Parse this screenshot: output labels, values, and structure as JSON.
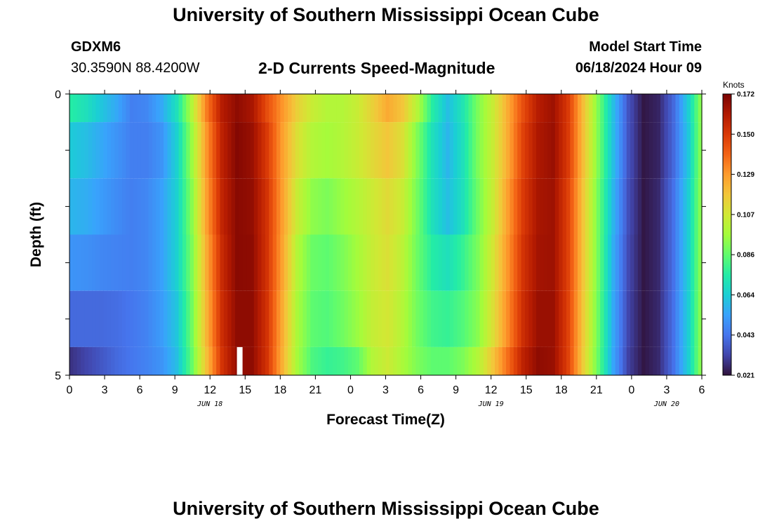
{
  "page": {
    "title": "University of Southern Mississippi Ocean Cube",
    "station_id": "GDXM6",
    "station_coords": "30.3590N  88.4200W",
    "plot_title": "2-D Currents Speed-Magnitude",
    "model_start_label": "Model Start Time",
    "model_start_value": "06/18/2024 Hour 09",
    "footer_title": "University of Southern Mississippi Ocean Cube"
  },
  "chart_data": {
    "type": "heatmap",
    "title": "2-D Currents Speed-Magnitude",
    "xlabel": "Forecast Time(Z)",
    "ylabel": "Depth (ft)",
    "x_tick_labels": [
      "0",
      "3",
      "6",
      "9",
      "12",
      "15",
      "18",
      "21",
      "0",
      "3",
      "6",
      "9",
      "12",
      "15",
      "18",
      "21",
      "0",
      "3",
      "6"
    ],
    "date_labels": [
      {
        "label": "JUN 18",
        "at_tick_index": 4
      },
      {
        "label": "JUN 19",
        "at_tick_index": 12
      },
      {
        "label": "JUN 20",
        "at_tick_index": 17
      }
    ],
    "y_tick_labels": [
      "0",
      "5"
    ],
    "ylim": [
      0,
      5
    ],
    "x_range_hours": [
      0,
      54
    ],
    "colorbar": {
      "unit": "Knots",
      "min": 0.021,
      "max": 0.172,
      "tick_labels": [
        "0.172",
        "0.150",
        "0.129",
        "0.107",
        "0.086",
        "0.064",
        "0.043",
        "0.021"
      ],
      "colors": [
        "#30123b",
        "#4145ab",
        "#4675ed",
        "#39a2fc",
        "#1bcfd4",
        "#24eca6",
        "#61fc6c",
        "#a4fc3b",
        "#d1e834",
        "#f3c63a",
        "#fe9b2d",
        "#f36315",
        "#d93806",
        "#b11901",
        "#7a0403"
      ]
    },
    "depth_layers_ft": [
      0,
      0.5,
      1.5,
      2.5,
      3.5,
      4.5
    ],
    "row_depth_bands_ft": [
      [
        0,
        0.5
      ],
      [
        0.5,
        1.5
      ],
      [
        1.5,
        2.5
      ],
      [
        2.5,
        3.5
      ],
      [
        3.5,
        4.5
      ],
      [
        4.5,
        5
      ]
    ],
    "speed_knots_by_row": [
      [
        0.075,
        0.07,
        0.062,
        0.055,
        0.045,
        0.047,
        0.055,
        0.07,
        0.1,
        0.135,
        0.16,
        0.168,
        0.163,
        0.145,
        0.13,
        0.115,
        0.105,
        0.1,
        0.1,
        0.105,
        0.115,
        0.125,
        0.118,
        0.1,
        0.075,
        0.06,
        0.072,
        0.09,
        0.105,
        0.125,
        0.145,
        0.16,
        0.165,
        0.15,
        0.12,
        0.09,
        0.06,
        0.035,
        0.022,
        0.025,
        0.04,
        0.065,
        0.1
      ],
      [
        0.063,
        0.06,
        0.055,
        0.05,
        0.045,
        0.045,
        0.05,
        0.065,
        0.095,
        0.13,
        0.158,
        0.17,
        0.166,
        0.15,
        0.128,
        0.11,
        0.1,
        0.097,
        0.1,
        0.105,
        0.112,
        0.118,
        0.11,
        0.09,
        0.07,
        0.058,
        0.07,
        0.09,
        0.105,
        0.125,
        0.148,
        0.162,
        0.166,
        0.15,
        0.12,
        0.09,
        0.06,
        0.035,
        0.022,
        0.025,
        0.04,
        0.063,
        0.1
      ],
      [
        0.058,
        0.056,
        0.052,
        0.048,
        0.045,
        0.047,
        0.053,
        0.065,
        0.092,
        0.128,
        0.157,
        0.169,
        0.167,
        0.152,
        0.128,
        0.105,
        0.093,
        0.09,
        0.095,
        0.1,
        0.106,
        0.112,
        0.105,
        0.088,
        0.07,
        0.06,
        0.07,
        0.088,
        0.105,
        0.128,
        0.15,
        0.163,
        0.165,
        0.148,
        0.118,
        0.088,
        0.058,
        0.034,
        0.022,
        0.026,
        0.042,
        0.065,
        0.1
      ],
      [
        0.05,
        0.049,
        0.047,
        0.046,
        0.045,
        0.047,
        0.053,
        0.065,
        0.09,
        0.125,
        0.155,
        0.169,
        0.168,
        0.152,
        0.127,
        0.1,
        0.087,
        0.085,
        0.09,
        0.097,
        0.105,
        0.11,
        0.102,
        0.087,
        0.075,
        0.07,
        0.078,
        0.09,
        0.108,
        0.13,
        0.152,
        0.164,
        0.165,
        0.148,
        0.118,
        0.088,
        0.056,
        0.033,
        0.022,
        0.026,
        0.042,
        0.065,
        0.1
      ],
      [
        0.04,
        0.04,
        0.04,
        0.041,
        0.043,
        0.046,
        0.052,
        0.062,
        0.088,
        0.123,
        0.154,
        0.168,
        0.168,
        0.152,
        0.125,
        0.098,
        0.085,
        0.083,
        0.088,
        0.095,
        0.104,
        0.108,
        0.1,
        0.088,
        0.08,
        0.078,
        0.083,
        0.092,
        0.11,
        0.132,
        0.154,
        0.166,
        0.166,
        0.148,
        0.117,
        0.087,
        0.055,
        0.032,
        0.022,
        0.026,
        0.042,
        0.065,
        0.1
      ],
      [
        0.028,
        0.032,
        0.036,
        0.04,
        0.043,
        0.046,
        0.05,
        0.06,
        0.086,
        0.12,
        0.152,
        0.167,
        0.168,
        0.152,
        0.124,
        0.097,
        0.082,
        0.078,
        0.08,
        0.085,
        0.1,
        0.106,
        0.098,
        0.09,
        0.085,
        0.085,
        0.09,
        0.1,
        0.118,
        0.138,
        0.158,
        0.168,
        0.166,
        0.148,
        0.116,
        0.086,
        0.054,
        0.031,
        0.022,
        0.026,
        0.042,
        0.065,
        0.1
      ]
    ]
  }
}
